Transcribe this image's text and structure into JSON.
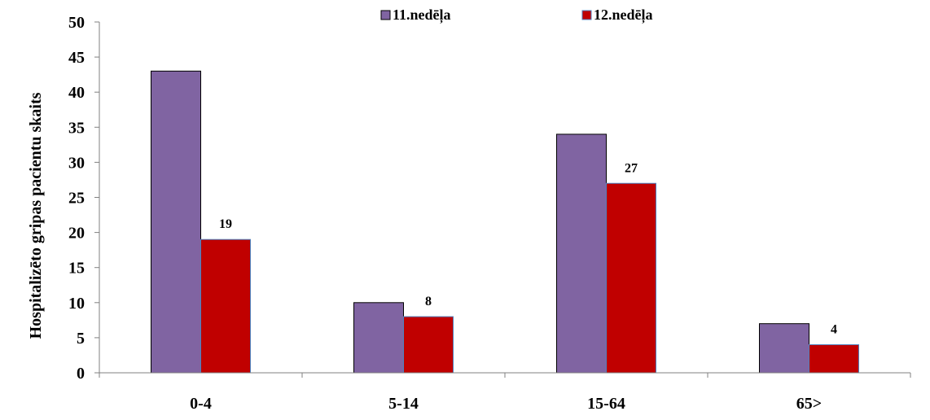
{
  "chart_data": {
    "type": "bar",
    "categories": [
      "0-4",
      "5-14",
      "15-64",
      "65>"
    ],
    "series": [
      {
        "name": "11.nedēļa",
        "values": [
          43,
          10,
          34,
          7
        ],
        "color": "#8064a2",
        "data_labels": false
      },
      {
        "name": "12.nedēļa",
        "values": [
          19,
          8,
          27,
          4
        ],
        "color": "#c00000",
        "data_labels": true
      }
    ],
    "ylabel": "Hospitalizēto gripas pacientu skaits",
    "xlabel": "",
    "ylim": [
      0,
      50
    ],
    "yticks": [
      0,
      5,
      10,
      15,
      20,
      25,
      30,
      35,
      40,
      45,
      50
    ],
    "grid": false,
    "legend": "top"
  }
}
